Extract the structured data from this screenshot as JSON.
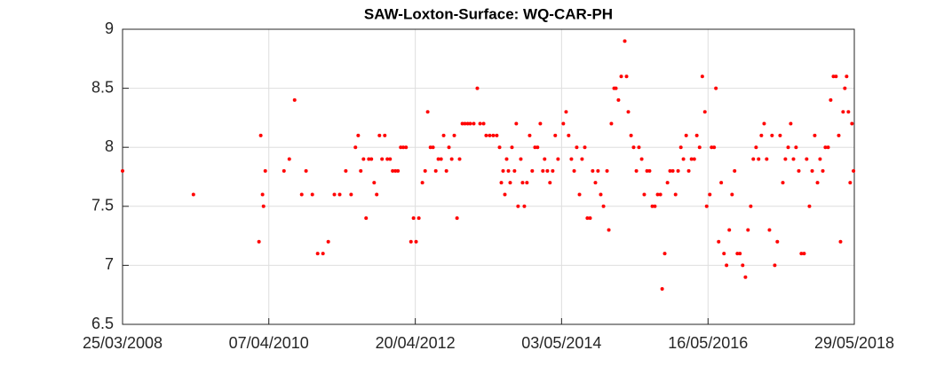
{
  "chart_data": {
    "type": "scatter",
    "title": "SAW-Loxton-Surface: WQ-CAR-PH",
    "color": "#ff0000",
    "grid": true,
    "xlim": [
      "25/03/2008",
      "29/05/2018"
    ],
    "xticks": [
      "25/03/2008",
      "07/04/2010",
      "20/04/2012",
      "03/05/2014",
      "16/05/2016",
      "29/05/2018"
    ],
    "ylim": [
      6.5,
      9
    ],
    "yticks": [
      6.5,
      7,
      7.5,
      8,
      8.5,
      9
    ],
    "x": [
      "25/03/2008",
      "20/03/2009",
      "16/02/2010",
      "25/02/2010",
      "06/03/2010",
      "11/03/2010",
      "20/03/2010",
      "23/06/2010",
      "20/07/2010",
      "16/08/2010",
      "21/09/2010",
      "13/10/2010",
      "14/11/2010",
      "11/12/2010",
      "07/01/2011",
      "03/02/2011",
      "06/03/2011",
      "02/04/2011",
      "03/05/2011",
      "30/05/2011",
      "21/06/2011",
      "05/07/2011",
      "18/07/2011",
      "01/08/2011",
      "14/08/2011",
      "28/08/2011",
      "10/09/2011",
      "24/09/2011",
      "07/10/2011",
      "21/10/2011",
      "03/11/2011",
      "17/11/2011",
      "30/11/2011",
      "14/12/2011",
      "27/12/2011",
      "10/01/2012",
      "23/01/2012",
      "06/02/2012",
      "19/02/2012",
      "04/03/2012",
      "29/03/2012",
      "11/04/2012",
      "24/04/2012",
      "08/05/2012",
      "26/05/2012",
      "09/06/2012",
      "22/06/2012",
      "06/07/2012",
      "19/07/2012",
      "02/08/2012",
      "15/08/2012",
      "29/08/2012",
      "11/09/2012",
      "25/09/2012",
      "08/10/2012",
      "22/10/2012",
      "04/11/2012",
      "18/11/2012",
      "01/12/2012",
      "15/12/2012",
      "28/12/2012",
      "11/01/2013",
      "24/01/2013",
      "11/02/2013",
      "01/03/2013",
      "15/03/2013",
      "02/04/2013",
      "15/04/2013",
      "03/05/2013",
      "21/05/2013",
      "08/06/2013",
      "22/06/2013",
      "01/07/2013",
      "10/07/2013",
      "19/07/2013",
      "28/07/2013",
      "06/08/2013",
      "15/08/2013",
      "24/08/2013",
      "06/09/2013",
      "15/09/2013",
      "24/09/2013",
      "08/10/2013",
      "17/10/2013",
      "26/10/2013",
      "08/11/2013",
      "22/11/2013",
      "05/12/2013",
      "19/12/2013",
      "01/01/2014",
      "15/01/2014",
      "28/01/2014",
      "06/02/2014",
      "20/02/2014",
      "05/03/2014",
      "19/03/2014",
      "01/04/2014",
      "15/04/2014",
      "12/05/2014",
      "26/05/2014",
      "08/06/2014",
      "22/06/2014",
      "06/07/2014",
      "19/07/2014",
      "02/08/2014",
      "15/08/2014",
      "29/08/2014",
      "11/09/2014",
      "25/09/2014",
      "08/10/2014",
      "22/10/2014",
      "04/11/2014",
      "18/11/2014",
      "02/12/2014",
      "20/12/2014",
      "29/12/2014",
      "11/01/2015",
      "25/01/2015",
      "03/02/2015",
      "16/02/2015",
      "02/03/2015",
      "20/03/2015",
      "29/03/2015",
      "07/04/2015",
      "21/04/2015",
      "04/05/2015",
      "18/05/2015",
      "31/05/2015",
      "14/06/2015",
      "27/06/2015",
      "11/07/2015",
      "24/07/2015",
      "07/08/2015",
      "20/08/2015",
      "03/09/2015",
      "17/09/2015",
      "26/09/2015",
      "09/10/2015",
      "23/10/2015",
      "05/11/2015",
      "19/11/2015",
      "03/12/2015",
      "16/12/2015",
      "30/12/2015",
      "12/01/2016",
      "26/01/2016",
      "08/02/2016",
      "22/02/2016",
      "07/03/2016",
      "20/03/2016",
      "03/04/2016",
      "17/04/2016",
      "30/04/2016",
      "09/05/2016",
      "25/05/2016",
      "03/06/2016",
      "16/06/2016",
      "25/06/2016",
      "09/07/2016",
      "22/07/2016",
      "05/08/2016",
      "18/08/2016",
      "01/09/2016",
      "15/09/2016",
      "28/09/2016",
      "12/10/2016",
      "25/10/2016",
      "08/11/2016",
      "22/11/2016",
      "05/12/2016",
      "19/12/2016",
      "01/01/2017",
      "15/01/2017",
      "28/01/2017",
      "11/02/2017",
      "25/02/2017",
      "10/03/2017",
      "24/03/2017",
      "06/04/2017",
      "20/04/2017",
      "03/05/2017",
      "17/05/2017",
      "31/05/2017",
      "13/06/2017",
      "27/06/2017",
      "10/07/2017",
      "24/07/2017",
      "06/08/2017",
      "20/08/2017",
      "02/09/2017",
      "16/09/2017",
      "29/09/2017",
      "13/10/2017",
      "27/10/2017",
      "09/11/2017",
      "23/11/2017",
      "06/12/2017",
      "20/12/2017",
      "02/01/2018",
      "16/01/2018",
      "29/01/2018",
      "12/02/2018",
      "25/02/2018",
      "11/03/2018",
      "20/03/2018",
      "02/04/2018",
      "11/04/2018",
      "20/04/2018",
      "29/04/2018",
      "08/05/2018",
      "17/05/2018",
      "25/05/2018"
    ],
    "values": [
      7.8,
      7.6,
      7.2,
      8.1,
      7.6,
      7.5,
      7.8,
      7.8,
      7.9,
      8.4,
      7.6,
      7.8,
      7.6,
      7.1,
      7.1,
      7.2,
      7.6,
      7.6,
      7.8,
      7.6,
      8.0,
      8.1,
      7.8,
      7.9,
      7.4,
      7.9,
      7.9,
      7.7,
      7.6,
      8.1,
      7.9,
      8.1,
      7.9,
      7.9,
      7.8,
      7.8,
      7.8,
      8.0,
      8.0,
      8.0,
      7.2,
      7.4,
      7.2,
      7.4,
      7.7,
      7.8,
      8.3,
      8.0,
      8.0,
      7.8,
      7.9,
      7.9,
      8.1,
      7.8,
      8.0,
      7.9,
      8.1,
      7.4,
      7.9,
      8.2,
      8.2,
      8.2,
      8.2,
      8.2,
      8.5,
      8.2,
      8.2,
      8.1,
      8.1,
      8.1,
      8.1,
      8.0,
      7.7,
      7.8,
      7.6,
      7.9,
      7.8,
      7.7,
      8.0,
      7.8,
      8.2,
      7.5,
      7.9,
      7.7,
      7.5,
      7.7,
      8.1,
      7.8,
      8.0,
      8.0,
      8.2,
      7.8,
      7.9,
      7.8,
      7.7,
      7.8,
      8.1,
      7.9,
      8.2,
      8.3,
      8.1,
      7.9,
      7.8,
      8.0,
      7.6,
      7.9,
      8.0,
      7.4,
      7.4,
      7.8,
      7.7,
      7.8,
      7.6,
      7.5,
      7.8,
      7.3,
      8.2,
      8.5,
      8.5,
      8.4,
      8.6,
      8.9,
      8.6,
      8.3,
      8.1,
      8.0,
      7.8,
      8.0,
      7.9,
      7.6,
      7.8,
      7.8,
      7.5,
      7.5,
      7.6,
      7.6,
      6.8,
      7.1,
      7.7,
      7.8,
      7.8,
      7.6,
      7.8,
      8.0,
      7.9,
      8.1,
      7.8,
      7.9,
      7.9,
      8.1,
      8.0,
      8.6,
      8.3,
      7.5,
      7.6,
      8.0,
      8.0,
      8.5,
      7.2,
      7.7,
      7.1,
      7.0,
      7.3,
      7.6,
      7.8,
      7.1,
      7.1,
      7.0,
      6.9,
      7.3,
      7.5,
      7.9,
      8.0,
      7.9,
      8.1,
      8.2,
      7.9,
      7.3,
      8.1,
      7.0,
      7.2,
      8.1,
      7.7,
      7.9,
      8.0,
      8.2,
      7.9,
      8.0,
      7.8,
      7.1,
      7.1,
      7.9,
      7.5,
      7.8,
      8.1,
      7.7,
      7.9,
      7.8,
      8.0,
      8.0,
      8.4,
      8.6,
      8.6,
      8.1,
      7.2,
      8.3,
      8.5,
      8.6,
      8.3,
      7.7,
      8.2,
      7.8
    ]
  }
}
